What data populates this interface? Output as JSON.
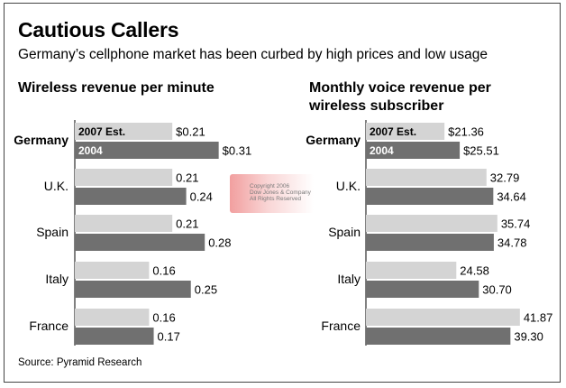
{
  "title": "Cautious Callers",
  "subtitle": "Germany’s cellphone market has been curbed by high prices and low usage",
  "source": "Source: Pyramid Research",
  "watermark": [
    "Copyright 2006",
    "Dow Jones & Company",
    "All Rights Reserved"
  ],
  "colors": {
    "estimate_bar": "#d4d4d4",
    "actual_bar": "#707070",
    "frame": "#444444"
  },
  "chart_data": [
    {
      "type": "bar",
      "title": "Wireless revenue per minute",
      "categories": [
        "Germany",
        "U.K.",
        "Spain",
        "Italy",
        "France"
      ],
      "series": [
        {
          "name": "2007 Est.",
          "values": [
            0.21,
            0.21,
            0.21,
            0.16,
            0.16
          ],
          "labels": [
            "$0.21",
            "0.21",
            "0.21",
            "0.16",
            "0.16"
          ]
        },
        {
          "name": "2004",
          "values": [
            0.31,
            0.24,
            0.28,
            0.25,
            0.17
          ],
          "labels": [
            "$0.31",
            "0.24",
            "0.28",
            "0.25",
            "0.17"
          ]
        }
      ],
      "orientation": "horizontal"
    },
    {
      "type": "bar",
      "title": "Monthly voice revenue per wireless subscriber",
      "categories": [
        "Germany",
        "U.K.",
        "Spain",
        "Italy",
        "France"
      ],
      "series": [
        {
          "name": "2007 Est.",
          "values": [
            21.36,
            32.79,
            35.74,
            24.58,
            41.87
          ],
          "labels": [
            "$21.36",
            "32.79",
            "35.74",
            "24.58",
            "41.87"
          ]
        },
        {
          "name": "2004",
          "values": [
            25.51,
            34.64,
            34.78,
            30.7,
            39.3
          ],
          "labels": [
            "$25.51",
            "34.64",
            "34.78",
            "30.70",
            "39.30"
          ]
        }
      ],
      "orientation": "horizontal"
    }
  ]
}
